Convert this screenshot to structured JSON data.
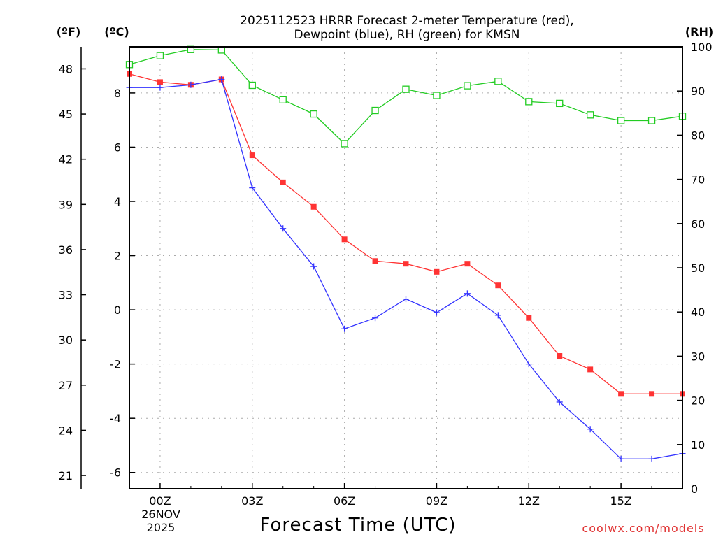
{
  "chart_data": {
    "type": "line",
    "title_line1": "2025112523 HRRR Forecast 2-meter Temperature (red),",
    "title_line2": "Dewpoint (blue), RH (green) for KMSN",
    "xlabel": "Forecast Time (UTC)",
    "credit": "coolwx.com/models",
    "colors": {
      "temperature": "#ff3333",
      "dewpoint": "#3333ff",
      "rh": "#22cc22"
    },
    "units": {
      "fahrenheit": "(ºF)",
      "celsius": "(ºC)",
      "rh": "(RH)"
    },
    "x_hours": [
      -1,
      0,
      1,
      2,
      3,
      4,
      5,
      6,
      7,
      8,
      9,
      10,
      11,
      12,
      13,
      14,
      15,
      16,
      17
    ],
    "x_range": [
      -1,
      17
    ],
    "x_ticks": [
      {
        "hour": 0,
        "label": "00Z"
      },
      {
        "hour": 3,
        "label": "03Z"
      },
      {
        "hour": 6,
        "label": "06Z"
      },
      {
        "hour": 9,
        "label": "09Z"
      },
      {
        "hour": 12,
        "label": "12Z"
      },
      {
        "hour": 15,
        "label": "15Z"
      }
    ],
    "date_label": {
      "day": "26NOV",
      "year": "2025"
    },
    "celsius_axis": {
      "range": [
        -6.6,
        9.7
      ],
      "ticks": [
        "-6",
        "-4",
        "-2",
        "0",
        "2",
        "4",
        "6",
        "8"
      ]
    },
    "fahrenheit_axis": {
      "range": [
        20.12,
        49.46
      ],
      "ticks": [
        "21",
        "24",
        "27",
        "30",
        "33",
        "36",
        "39",
        "42",
        "45",
        "48"
      ]
    },
    "rh_axis": {
      "range": [
        0,
        100
      ],
      "ticks": [
        "0",
        "10",
        "20",
        "30",
        "40",
        "50",
        "60",
        "70",
        "80",
        "90",
        "100"
      ]
    },
    "series": [
      {
        "name": "Temperature",
        "axis": "celsius",
        "marker": "filled-square",
        "values": [
          8.7,
          8.4,
          8.3,
          8.5,
          5.7,
          4.7,
          3.8,
          2.6,
          1.8,
          1.7,
          1.4,
          1.7,
          0.9,
          -0.3,
          -1.7,
          -2.2,
          -3.1,
          -3.1,
          -3.1
        ]
      },
      {
        "name": "Dewpoint",
        "axis": "celsius",
        "marker": "plus",
        "values": [
          8.2,
          8.2,
          8.3,
          8.5,
          4.5,
          3.0,
          1.6,
          -0.7,
          -0.3,
          0.4,
          -0.1,
          0.6,
          -0.2,
          -2.0,
          -3.4,
          -4.4,
          -5.5,
          -5.5,
          -5.3
        ]
      },
      {
        "name": "RH",
        "axis": "rh",
        "marker": "open-square",
        "values": [
          96.0,
          98.0,
          99.4,
          99.3,
          91.3,
          88.0,
          84.8,
          78.1,
          85.6,
          90.4,
          89.0,
          91.2,
          92.2,
          87.6,
          87.2,
          84.6,
          83.3,
          83.3,
          84.3
        ]
      }
    ]
  }
}
